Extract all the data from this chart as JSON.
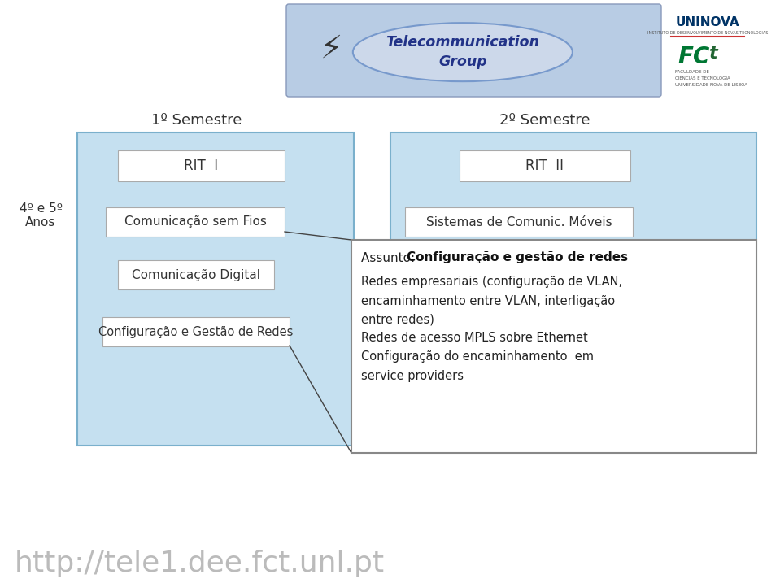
{
  "bg_color": "#ffffff",
  "container_fill": "#c5e0f0",
  "container_edge": "#7ab0cc",
  "box_fill": "#ffffff",
  "box_edge": "#aaaaaa",
  "popup_edge": "#888888",
  "popup_fill": "#ffffff",
  "banner_fill": "#b8cce4",
  "banner_edge": "#8899bb",
  "label_anos": "4º e 5º\nAnos",
  "label_sem1": "1º Semestre",
  "label_sem2": "2º Semestre",
  "rit1_label": "RIT  I",
  "rit2_label": "RIT  II",
  "box1_label": "Comunicação sem Fios",
  "box2_label": "Sistemas de Comunic. Móveis",
  "box3_label": "Comunicação Digital",
  "box4_label": "Configuração e Gestão de Redes",
  "popup_title_prefix": "Assunto: ",
  "popup_title_bold": "Configuração e gestão de redes",
  "popup_lines": [
    "Redes empresariais (configuração de VLAN,",
    "encaminhamento entre VLAN, interligação",
    "entre redes)",
    "Redes de acesso MPLS sobre Ethernet",
    "Configuração do encaminhamento  em",
    "service providers"
  ],
  "footer_text": "http://tele1.dee.fct.unl.pt",
  "footer_color": "#bbbbbb",
  "footer_fontsize": 26,
  "uninova_text": "UNINOVA",
  "uninova_sub": "INSTITUTO DE DESENVOLVIMENTO DE NOVAS TECNOLOGIAS",
  "fct_text": "FCt",
  "fct_sub1": "FACULDADE DE",
  "fct_sub2": "CIÊNCIAS E TECNOLOGIA",
  "fct_sub3": "UNIVERSIDADE NOVA DE LISBOA",
  "telecom_line1": "Telecommunication",
  "telecom_line2": "Group"
}
